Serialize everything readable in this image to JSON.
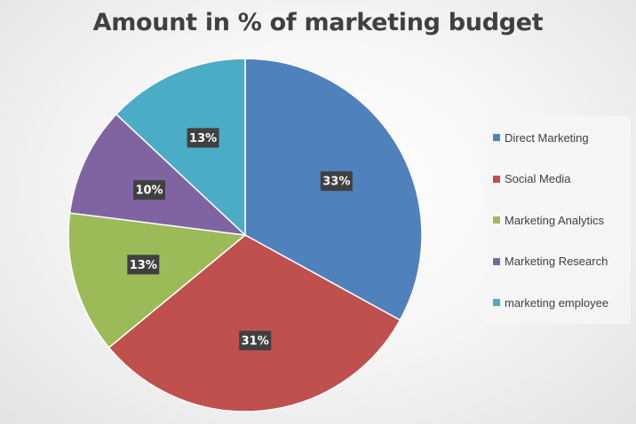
{
  "chart_data": {
    "type": "pie",
    "title": "Amount in % of marketing budget",
    "slices": [
      {
        "label": "Direct Marketing",
        "value": 33,
        "display": "33%",
        "color": "#4f81bd"
      },
      {
        "label": "Social Media",
        "value": 31,
        "display": "31%",
        "color": "#c0504d"
      },
      {
        "label": "Marketing Analytics",
        "value": 13,
        "display": "13%",
        "color": "#9bbb59"
      },
      {
        "label": "Marketing Research",
        "value": 10,
        "display": "10%",
        "color": "#8064a2"
      },
      {
        "label": "marketing employee",
        "value": 13,
        "display": "13%",
        "color": "#4bacc6"
      }
    ],
    "start_angle": "12 o'clock, clockwise",
    "legend_position": "right"
  }
}
